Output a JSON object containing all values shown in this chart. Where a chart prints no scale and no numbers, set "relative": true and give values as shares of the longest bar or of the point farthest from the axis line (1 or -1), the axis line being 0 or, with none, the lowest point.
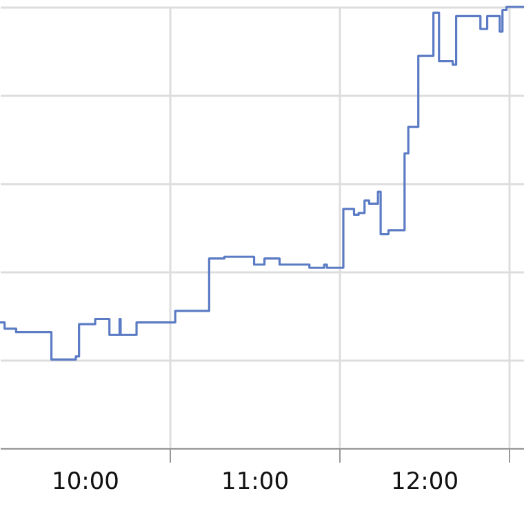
{
  "chart_data": {
    "type": "step",
    "relative": true,
    "x": [
      9.5,
      9.527,
      9.595,
      9.803,
      9.947,
      9.966,
      10.061,
      10.145,
      10.205,
      10.211,
      10.305,
      10.533,
      10.733,
      10.823,
      10.998,
      11.059,
      11.148,
      11.324,
      11.411,
      11.427,
      11.524,
      11.587,
      11.614,
      11.649,
      11.676,
      11.728,
      11.744,
      11.79,
      11.885,
      11.907,
      11.966,
      12.055,
      12.088,
      12.169,
      12.189,
      12.332,
      12.372,
      12.446,
      12.462,
      12.486,
      12.589
    ],
    "series": [
      {
        "color": "#5b7bc4",
        "values": [
          0.285,
          0.271,
          0.263,
          0.201,
          0.208,
          0.281,
          0.293,
          0.257,
          0.293,
          0.257,
          0.285,
          0.311,
          0.43,
          0.434,
          0.416,
          0.43,
          0.416,
          0.409,
          0.416,
          0.409,
          0.542,
          0.529,
          0.533,
          0.561,
          0.554,
          0.581,
          0.485,
          0.494,
          0.668,
          0.728,
          0.889,
          0.987,
          0.877,
          0.869,
          0.979,
          0.95,
          0.979,
          0.944,
          0.993,
          1,
          1
        ]
      }
    ],
    "xlim": [
      9.5,
      12.589
    ],
    "xticks": [
      {
        "value": 10,
        "label": "10:00"
      },
      {
        "value": 10.5,
        "label": null
      },
      {
        "value": 11,
        "label": "11:00"
      },
      {
        "value": 11.5,
        "label": null
      },
      {
        "value": 12,
        "label": "12:00"
      },
      {
        "value": 12.5,
        "label": null
      }
    ],
    "grid": true,
    "tick_labels": "x",
    "marker": "none",
    "line_style": "solid"
  }
}
